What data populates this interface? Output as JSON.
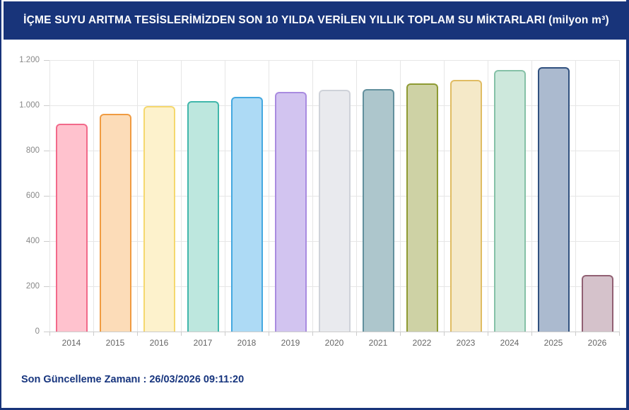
{
  "header": {
    "title": "İÇME SUYU ARITMA TESİSLERİMİZDEN SON 10 YILDA VERİLEN YILLIK TOPLAM SU MİKTARLARI (milyon m³)",
    "background_color": "#18347A",
    "text_color": "#FFFFFF"
  },
  "chart_data": {
    "type": "bar",
    "title": "İÇME SUYU ARITMA TESİSLERİMİZDEN SON 10 YILDA VERİLEN YILLIK TOPLAM SU MİKTARLARI (milyon m³)",
    "xlabel": "",
    "ylabel": "",
    "ylim": [
      0,
      1200
    ],
    "grid": true,
    "legend": "none",
    "categories": [
      "2014",
      "2015",
      "2016",
      "2017",
      "2018",
      "2019",
      "2020",
      "2021",
      "2022",
      "2023",
      "2024",
      "2025",
      "2026"
    ],
    "values": [
      920,
      961,
      996,
      1018,
      1037,
      1058,
      1069,
      1071,
      1098,
      1113,
      1157,
      1170,
      251
    ],
    "y_tick_values": [
      0,
      200,
      400,
      600,
      800,
      1000,
      1200
    ],
    "y_tick_labels": [
      "0",
      "200",
      "400",
      "600",
      "800",
      "1.000",
      "1.200"
    ],
    "bar_colors": [
      {
        "fill": "#FFC2CE",
        "border": "#F2698A"
      },
      {
        "fill": "#FCDCB8",
        "border": "#F09B41"
      },
      {
        "fill": "#FDF2CC",
        "border": "#F5D86E"
      },
      {
        "fill": "#BDE7DE",
        "border": "#41B7AB"
      },
      {
        "fill": "#ADDAF5",
        "border": "#44A8E0"
      },
      {
        "fill": "#D2C4F0",
        "border": "#A98BE0"
      },
      {
        "fill": "#E9EAEE",
        "border": "#CFD2D9"
      },
      {
        "fill": "#ADC6CC",
        "border": "#62909D"
      },
      {
        "fill": "#CED2A5",
        "border": "#8E9A33"
      },
      {
        "fill": "#F5E9C8",
        "border": "#E0BC63"
      },
      {
        "fill": "#CDE8DC",
        "border": "#85C1A7"
      },
      {
        "fill": "#ABBACF",
        "border": "#31517F"
      },
      {
        "fill": "#D5C2CB",
        "border": "#916073"
      }
    ]
  },
  "footer": {
    "label": "Son Güncelleme Zamanı",
    "separator": " : ",
    "timestamp": "26/03/2026 09:11:20",
    "text_color": "#17357E"
  }
}
